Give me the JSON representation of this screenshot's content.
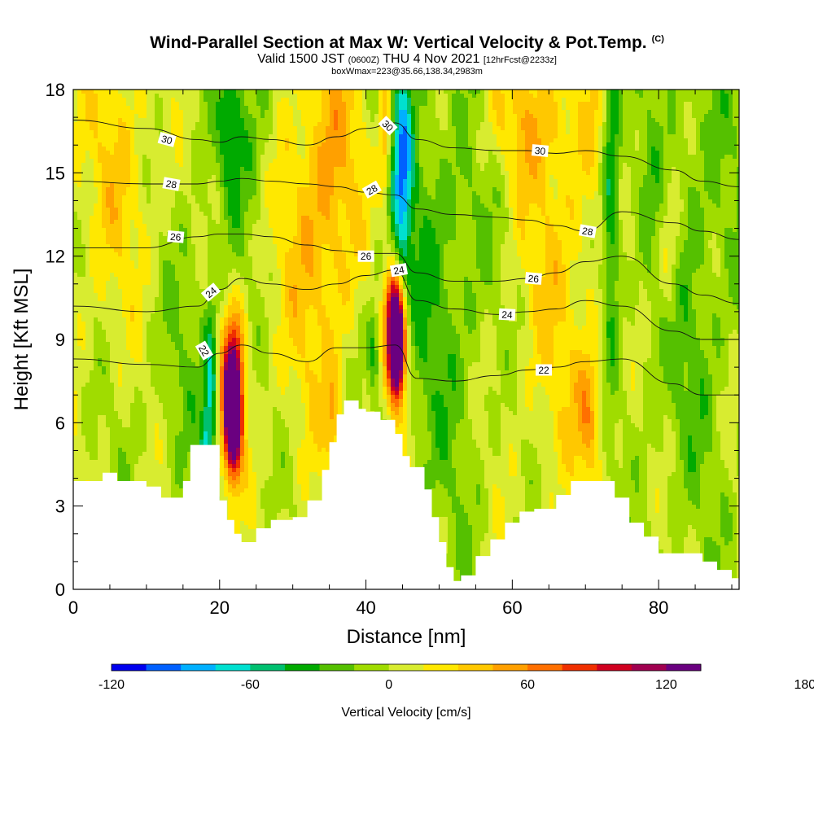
{
  "header": {
    "title": "Wind-Parallel Section at Max W: Vertical Velocity & Pot.Temp.",
    "title_mark": "(C)",
    "valid_prefix": "Valid 1500 JST",
    "valid_utc": "(0600Z)",
    "valid_date": "THU 4 Nov 2021",
    "forecast": "[12hrFcst@2233z]",
    "meta": "boxWmax=223@35.66,138.34,2983m"
  },
  "chart_data": {
    "type": "heatmap",
    "xlabel": "Distance [nm]",
    "ylabel": "Height [Kft MSL]",
    "xlim": [
      0,
      91
    ],
    "ylim": [
      0,
      18
    ],
    "x_ticks": [
      0,
      20,
      40,
      60,
      80
    ],
    "y_ticks": [
      0,
      3,
      6,
      9,
      12,
      15,
      18
    ],
    "terrain_kft": [
      [
        0,
        3.9
      ],
      [
        4,
        4.2
      ],
      [
        6,
        3.9
      ],
      [
        10,
        3.7
      ],
      [
        12,
        3.3
      ],
      [
        15,
        3.9
      ],
      [
        16,
        5.2
      ],
      [
        19,
        5.2
      ],
      [
        20,
        3.2
      ],
      [
        21,
        2.5
      ],
      [
        22,
        2.0
      ],
      [
        23,
        1.7
      ],
      [
        25,
        2.2
      ],
      [
        27,
        2.5
      ],
      [
        30,
        2.6
      ],
      [
        32,
        3.2
      ],
      [
        34,
        4.3
      ],
      [
        35,
        5.3
      ],
      [
        36,
        6.3
      ],
      [
        37,
        6.8
      ],
      [
        39,
        6.5
      ],
      [
        40,
        6.4
      ],
      [
        42,
        6.1
      ],
      [
        44,
        5.6
      ],
      [
        45,
        4.8
      ],
      [
        46,
        4.4
      ],
      [
        48,
        3.6
      ],
      [
        49,
        2.6
      ],
      [
        50,
        1.7
      ],
      [
        51,
        0.8
      ],
      [
        52,
        0.3
      ],
      [
        53,
        0.5
      ],
      [
        55,
        1.2
      ],
      [
        57,
        1.8
      ],
      [
        59,
        2.4
      ],
      [
        61,
        2.8
      ],
      [
        63,
        2.9
      ],
      [
        66,
        3.4
      ],
      [
        68,
        3.9
      ],
      [
        71,
        3.9
      ],
      [
        74,
        3.3
      ],
      [
        76,
        2.4
      ],
      [
        78,
        1.9
      ],
      [
        80,
        1.3
      ],
      [
        84,
        1.3
      ],
      [
        86,
        1.0
      ],
      [
        88,
        0.7
      ],
      [
        90,
        0.4
      ],
      [
        91,
        0.4
      ]
    ],
    "colorbar": {
      "title": "Vertical Velocity [cm/s]",
      "labels": [
        "-120",
        "-60",
        "0",
        "60",
        "120",
        "180"
      ],
      "levels": [
        -120,
        -60,
        0,
        60,
        120,
        180
      ],
      "colors": [
        "#0000ee",
        "#0060ff",
        "#00b0ff",
        "#00e0d0",
        "#00c070",
        "#00aa00",
        "#55c000",
        "#a0dc00",
        "#d8ec30",
        "#ffe800",
        "#ffc800",
        "#ffa000",
        "#ff7000",
        "#f03000",
        "#d00020",
        "#a00050",
        "#6a0080"
      ]
    },
    "contour_labels": [
      {
        "text": "30",
        "x": 12.8,
        "y": 16.2,
        "rot": 15
      },
      {
        "text": "28",
        "x": 13.4,
        "y": 14.6,
        "rot": 10
      },
      {
        "text": "26",
        "x": 14.0,
        "y": 12.7,
        "rot": 5
      },
      {
        "text": "24",
        "x": 18.8,
        "y": 10.7,
        "rot": -40
      },
      {
        "text": "22",
        "x": 17.9,
        "y": 8.6,
        "rot": 60
      },
      {
        "text": "30",
        "x": 43.0,
        "y": 16.7,
        "rot": 45
      },
      {
        "text": "28",
        "x": 40.8,
        "y": 14.4,
        "rot": -30
      },
      {
        "text": "26",
        "x": 40.0,
        "y": 12.0,
        "rot": 0
      },
      {
        "text": "24",
        "x": 44.5,
        "y": 11.5,
        "rot": -10
      },
      {
        "text": "30",
        "x": 63.8,
        "y": 15.8,
        "rot": 5
      },
      {
        "text": "28",
        "x": 70.3,
        "y": 12.9,
        "rot": 10
      },
      {
        "text": "26",
        "x": 62.9,
        "y": 11.2,
        "rot": 5
      },
      {
        "text": "24",
        "x": 59.3,
        "y": 9.9,
        "rot": 3
      },
      {
        "text": "22",
        "x": 64.3,
        "y": 7.9,
        "rot": 0
      }
    ],
    "theta_levels": [
      22,
      24,
      26,
      28,
      30
    ],
    "contour_x": [
      0,
      10,
      17,
      20,
      23,
      27,
      32,
      36,
      40,
      44,
      47,
      52,
      58,
      62,
      66,
      70,
      75,
      82,
      86,
      91
    ],
    "theta_contours": [
      {
        "level": 22,
        "heights": [
          8.3,
          8.1,
          8.0,
          8.5,
          8.8,
          8.5,
          8.2,
          8.7,
          8.7,
          8.8,
          7.6,
          7.5,
          7.7,
          7.9,
          8.0,
          8.2,
          8.3,
          7.4,
          7.0,
          7.0
        ]
      },
      {
        "level": 24,
        "heights": [
          10.2,
          10.0,
          10.2,
          10.8,
          11.2,
          11.0,
          10.8,
          11.0,
          11.3,
          11.5,
          10.4,
          10.1,
          9.9,
          10.0,
          10.1,
          10.4,
          10.2,
          9.3,
          9.0,
          9.0
        ]
      },
      {
        "level": 26,
        "heights": [
          12.3,
          12.3,
          12.7,
          12.8,
          12.8,
          12.7,
          12.4,
          12.2,
          12.1,
          12.1,
          11.4,
          11.1,
          11.1,
          11.2,
          11.4,
          11.8,
          12.0,
          11.0,
          10.6,
          10.3
        ]
      },
      {
        "level": 28,
        "heights": [
          14.7,
          14.6,
          14.6,
          14.7,
          14.8,
          14.7,
          14.6,
          14.5,
          14.3,
          14.2,
          13.7,
          13.5,
          13.4,
          13.3,
          13.1,
          12.9,
          13.6,
          13.2,
          12.9,
          12.6
        ]
      },
      {
        "level": 30,
        "heights": [
          16.9,
          16.6,
          16.2,
          16.1,
          16.3,
          16.2,
          16.0,
          16.3,
          16.6,
          16.8,
          16.2,
          15.9,
          15.8,
          15.8,
          15.7,
          15.8,
          15.6,
          15.1,
          14.7,
          14.5
        ]
      }
    ]
  }
}
